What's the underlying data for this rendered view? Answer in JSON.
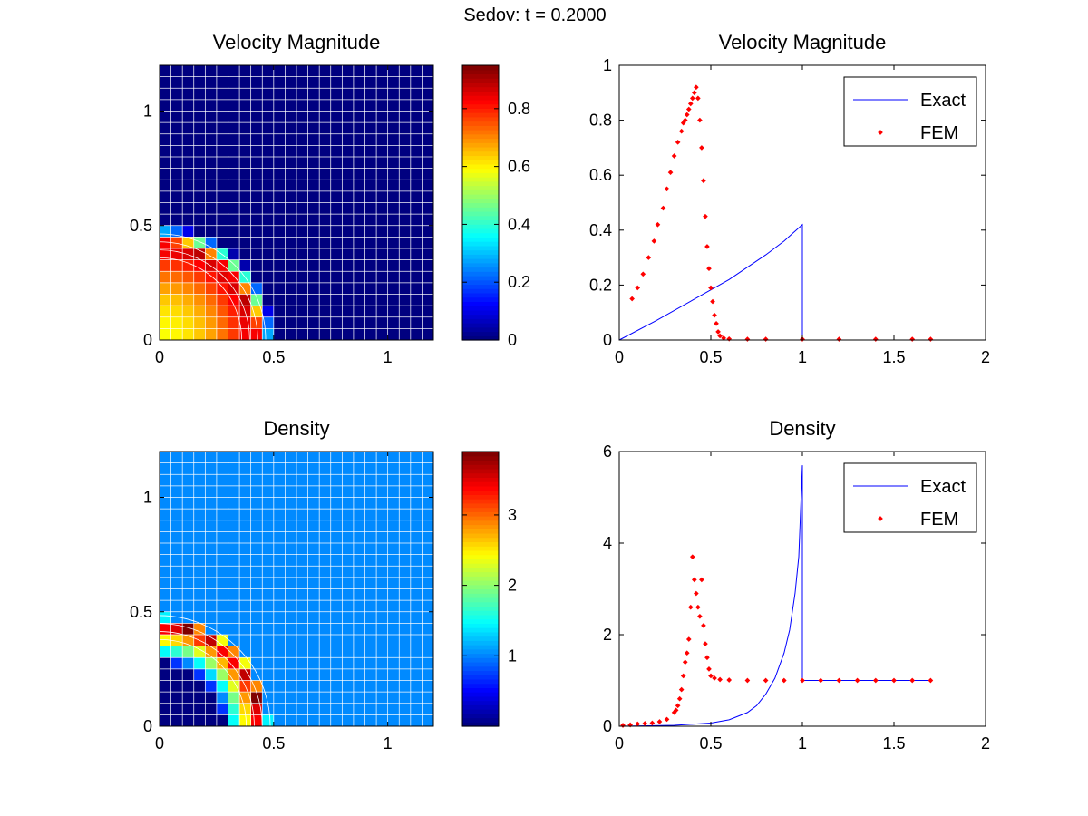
{
  "figure": {
    "suptitle": "Sedov: t = 0.2000"
  },
  "colors": {
    "exact_line": "#0000ff",
    "fem_points": "#ff0000",
    "axis": "#000000",
    "mesh": "#ffffff",
    "colormap": "jet"
  },
  "chart_data": [
    {
      "type": "heatmap",
      "title": "Velocity Magnitude",
      "field": "velocity",
      "xlim": [
        0,
        1.2
      ],
      "ylim": [
        0,
        1.2
      ],
      "xticks": [
        "0",
        "0.5",
        "1"
      ],
      "yticks": [
        "0",
        "0.5",
        "1"
      ],
      "mesh_cells": [
        24,
        24
      ],
      "ring_radius": 0.42,
      "shock_radius": 0.5,
      "colorbar": {
        "range": [
          0,
          0.95
        ],
        "ticks": [
          "0",
          "0.2",
          "0.4",
          "0.6",
          "0.8"
        ]
      }
    },
    {
      "type": "scatter",
      "title": "Velocity Magnitude",
      "xlim": [
        0,
        2
      ],
      "ylim": [
        0,
        1
      ],
      "xticks": [
        "0",
        "0.5",
        "1",
        "1.5",
        "2"
      ],
      "yticks": [
        "0",
        "0.2",
        "0.4",
        "0.6",
        "0.8",
        "1"
      ],
      "legend_position": "top-right",
      "series": [
        {
          "name": "Exact",
          "kind": "line",
          "x": [
            0,
            0.2,
            0.4,
            0.6,
            0.8,
            0.9,
            0.95,
            1.0,
            1.0,
            1.7
          ],
          "y": [
            0,
            0.07,
            0.145,
            0.22,
            0.31,
            0.36,
            0.39,
            0.42,
            0,
            0
          ]
        },
        {
          "name": "FEM",
          "kind": "points",
          "x": [
            0.07,
            0.1,
            0.13,
            0.16,
            0.19,
            0.21,
            0.24,
            0.26,
            0.28,
            0.3,
            0.32,
            0.34,
            0.35,
            0.36,
            0.37,
            0.38,
            0.39,
            0.4,
            0.41,
            0.42,
            0.43,
            0.44,
            0.45,
            0.46,
            0.47,
            0.48,
            0.49,
            0.5,
            0.51,
            0.52,
            0.53,
            0.54,
            0.55,
            0.57,
            0.6,
            0.7,
            0.8,
            1.0,
            1.2,
            1.4,
            1.6,
            1.7
          ],
          "y": [
            0.15,
            0.19,
            0.24,
            0.3,
            0.36,
            0.42,
            0.48,
            0.55,
            0.61,
            0.67,
            0.72,
            0.76,
            0.79,
            0.8,
            0.82,
            0.84,
            0.86,
            0.88,
            0.9,
            0.92,
            0.88,
            0.8,
            0.7,
            0.58,
            0.45,
            0.34,
            0.26,
            0.19,
            0.14,
            0.09,
            0.06,
            0.03,
            0.015,
            0.007,
            0.004,
            0.003,
            0.003,
            0.003,
            0.003,
            0.003,
            0.003,
            0.003
          ]
        }
      ]
    },
    {
      "type": "heatmap",
      "title": "Density",
      "field": "density",
      "xlim": [
        0,
        1.2
      ],
      "ylim": [
        0,
        1.2
      ],
      "xticks": [
        "0",
        "0.5",
        "1"
      ],
      "yticks": [
        "0",
        "0.5",
        "1"
      ],
      "mesh_cells": [
        24,
        24
      ],
      "ring_radius": 0.44,
      "shock_radius": 0.48,
      "colorbar": {
        "range": [
          0,
          3.9
        ],
        "ticks": [
          "1",
          "2",
          "3"
        ]
      }
    },
    {
      "type": "scatter",
      "title": "Density",
      "xlim": [
        0,
        2
      ],
      "ylim": [
        0,
        6
      ],
      "xticks": [
        "0",
        "0.5",
        "1",
        "1.5",
        "2"
      ],
      "yticks": [
        "0",
        "2",
        "4",
        "6"
      ],
      "legend_position": "top-right",
      "series": [
        {
          "name": "Exact",
          "kind": "line",
          "x": [
            0,
            0.3,
            0.5,
            0.6,
            0.7,
            0.75,
            0.8,
            0.85,
            0.9,
            0.93,
            0.96,
            0.98,
            1.0,
            1.0,
            1.7
          ],
          "y": [
            0,
            0.02,
            0.07,
            0.14,
            0.3,
            0.45,
            0.7,
            1.05,
            1.6,
            2.1,
            2.9,
            3.7,
            5.7,
            1.0,
            1.0
          ]
        },
        {
          "name": "FEM",
          "kind": "points",
          "x": [
            0.02,
            0.06,
            0.1,
            0.14,
            0.18,
            0.22,
            0.26,
            0.3,
            0.31,
            0.32,
            0.33,
            0.34,
            0.35,
            0.36,
            0.37,
            0.38,
            0.39,
            0.4,
            0.41,
            0.42,
            0.43,
            0.44,
            0.45,
            0.46,
            0.47,
            0.48,
            0.49,
            0.5,
            0.52,
            0.55,
            0.6,
            0.7,
            0.8,
            0.9,
            1.0,
            1.1,
            1.2,
            1.3,
            1.4,
            1.5,
            1.6,
            1.7
          ],
          "y": [
            0.02,
            0.03,
            0.05,
            0.06,
            0.07,
            0.1,
            0.15,
            0.3,
            0.35,
            0.45,
            0.6,
            0.8,
            1.1,
            1.4,
            1.6,
            1.9,
            2.6,
            3.7,
            3.2,
            2.9,
            2.6,
            2.4,
            3.2,
            2.2,
            1.8,
            1.5,
            1.25,
            1.1,
            1.05,
            1.02,
            1.01,
            1.0,
            1.0,
            1.0,
            1.0,
            1.0,
            1.0,
            1.0,
            1.0,
            1.0,
            1.0,
            1.0
          ]
        }
      ]
    }
  ]
}
